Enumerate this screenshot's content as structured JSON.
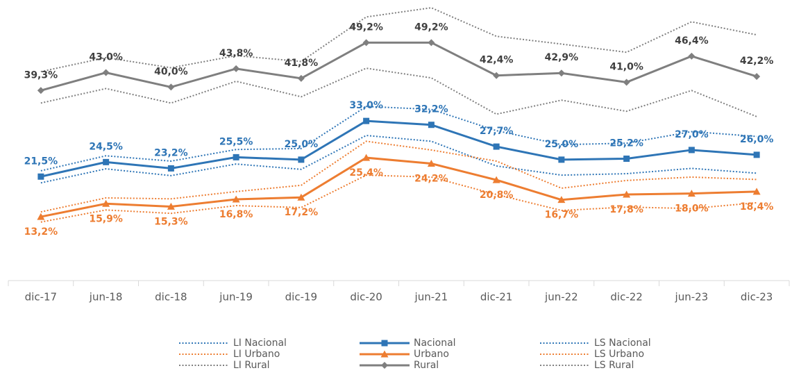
{
  "chart_data": {
    "type": "line",
    "categories": [
      "dic-17",
      "jun-18",
      "dic-18",
      "jun-19",
      "dic-19",
      "dic-20",
      "jun-21",
      "dic-21",
      "jun-22",
      "dic-22",
      "jun-23",
      "dic-23"
    ],
    "ylim": [
      0,
      57
    ],
    "legend": "bottom",
    "series": [
      {
        "name": "LI Nacional",
        "color": "#2e75b6",
        "style": "dotted",
        "values": [
          20.2,
          23.1,
          21.7,
          24.1,
          23.0,
          30.0,
          28.8,
          23.7,
          21.8,
          22.1,
          23.2,
          22.2
        ]
      },
      {
        "name": "Nacional",
        "color": "#2e75b6",
        "style": "solid",
        "marker": "square",
        "label_position": "above",
        "values": [
          21.5,
          24.5,
          23.2,
          25.5,
          25.0,
          33.0,
          32.2,
          27.7,
          25.0,
          25.2,
          27.0,
          26.0
        ],
        "value_labels": [
          "21,5%",
          "24,5%",
          "23,2%",
          "25,5%",
          "25,0%",
          "33,0%",
          "32,2%",
          "27,7%",
          "25,0%",
          "25,2%",
          "27,0%",
          "26,0%"
        ]
      },
      {
        "name": "LS Nacional",
        "color": "#2e75b6",
        "style": "dotted",
        "values": [
          22.7,
          25.8,
          24.7,
          27.1,
          27.3,
          36.0,
          35.4,
          31.0,
          28.1,
          28.4,
          30.8,
          29.8
        ]
      },
      {
        "name": "LI Urbano",
        "color": "#ed7d31",
        "style": "dotted",
        "values": [
          12.1,
          14.6,
          13.9,
          15.5,
          15.1,
          21.8,
          21.4,
          17.8,
          14.5,
          15.2,
          14.9,
          16.1
        ]
      },
      {
        "name": "Urbano",
        "color": "#ed7d31",
        "style": "solid",
        "marker": "triangle",
        "label_position": "below",
        "values": [
          13.2,
          15.9,
          15.3,
          16.8,
          17.2,
          25.4,
          24.2,
          20.8,
          16.7,
          17.8,
          18.0,
          18.4
        ],
        "value_labels": [
          "13,2%",
          "15,9%",
          "15,3%",
          "16,8%",
          "17,2%",
          "25,4%",
          "24,2%",
          "20,8%",
          "16,7%",
          "17,8%",
          "18,0%",
          "18,4%"
        ]
      },
      {
        "name": "LS Urbano",
        "color": "#ed7d31",
        "style": "dotted",
        "values": [
          14.2,
          17.1,
          16.9,
          18.4,
          19.7,
          28.8,
          27.0,
          24.7,
          19.1,
          20.7,
          21.4,
          20.9
        ]
      },
      {
        "name": "LI Rural",
        "color": "#7f7f7f",
        "style": "dotted",
        "values": [
          36.7,
          39.7,
          36.7,
          41.2,
          38.0,
          43.9,
          41.9,
          34.4,
          37.3,
          35.0,
          39.3,
          33.9
        ]
      },
      {
        "name": "Rural",
        "color": "#7f7f7f",
        "style": "solid",
        "marker": "diamond",
        "label_position": "above",
        "label_color": "#404040",
        "values": [
          39.3,
          43.0,
          40.0,
          43.8,
          41.8,
          49.2,
          49.2,
          42.4,
          42.9,
          41.0,
          46.4,
          42.2
        ],
        "value_labels": [
          "39,3%",
          "43,0%",
          "40,0%",
          "43,8%",
          "41,8%",
          "49,2%",
          "49,2%",
          "42,4%",
          "42,9%",
          "41,0%",
          "46,4%",
          "42,2%"
        ]
      },
      {
        "name": "LS Rural",
        "color": "#7f7f7f",
        "style": "dotted",
        "values": [
          43.2,
          46.1,
          44.0,
          46.5,
          45.3,
          54.5,
          56.4,
          50.5,
          48.9,
          47.2,
          53.5,
          50.8
        ]
      }
    ]
  }
}
